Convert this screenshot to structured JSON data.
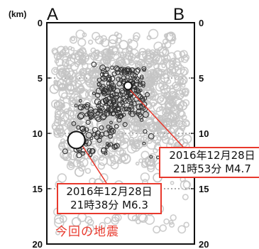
{
  "chart_data": {
    "type": "scatter",
    "title": "",
    "unit_label": "(km)",
    "endpoint_labels": [
      "A",
      "B"
    ],
    "ylim": [
      0,
      20
    ],
    "y_ticks": [
      "0",
      "5",
      "10",
      "15",
      "20"
    ],
    "dashed_gridlines_at": [
      5,
      10,
      15
    ],
    "colors": {
      "background_events": "#c4c4c4",
      "recent_events": "#333333",
      "annotation": "#e8382c"
    },
    "series": [
      {
        "note": "gray open circles (background seismicity), depth 1-19 km",
        "x_fraction": [
          0.05,
          0.08,
          0.1,
          0.12,
          0.15,
          0.18,
          0.22,
          0.25,
          0.28,
          0.3,
          0.35,
          0.4,
          0.45,
          0.5,
          0.55,
          0.6,
          0.65,
          0.7,
          0.72,
          0.75,
          0.78,
          0.8,
          0.85,
          0.9,
          0.95,
          0.18,
          0.22,
          0.3,
          0.38,
          0.62,
          0.7,
          0.82,
          0.88,
          0.2,
          0.35,
          0.52,
          0.75,
          0.92,
          0.45,
          0.58
        ],
        "depth_km": [
          6.0,
          7.5,
          5.5,
          8.5,
          4.5,
          9.5,
          3.0,
          6.5,
          5.0,
          11.5,
          4.0,
          6.0,
          2.5,
          3.5,
          5.5,
          8.0,
          3.0,
          6.5,
          9.5,
          4.5,
          7.0,
          5.0,
          8.5,
          6.5,
          10.5,
          12.0,
          13.5,
          16.0,
          12.5,
          11.0,
          12.5,
          9.0,
          11.5,
          18.0,
          14.5,
          2.0,
          14.0,
          7.5,
          1.5,
          17.5
        ]
      },
      {
        "note": "dark open circles (events after the main shock), depth 4-12 km",
        "x_fraction": [
          0.38,
          0.42,
          0.45,
          0.48,
          0.5,
          0.52,
          0.55,
          0.58,
          0.6,
          0.62,
          0.4,
          0.44,
          0.47,
          0.51,
          0.54,
          0.57,
          0.35,
          0.3,
          0.28,
          0.33,
          0.37,
          0.25,
          0.2,
          0.18,
          0.22,
          0.65,
          0.68,
          0.45,
          0.49,
          0.53
        ],
        "depth_km": [
          5.0,
          5.5,
          6.0,
          4.5,
          6.5,
          5.0,
          6.0,
          5.5,
          4.8,
          6.2,
          7.0,
          7.5,
          6.8,
          7.2,
          7.8,
          6.5,
          7.5,
          8.5,
          9.0,
          8.0,
          9.5,
          9.8,
          10.5,
          11.0,
          11.5,
          7.0,
          6.5,
          8.2,
          8.8,
          9.2
        ]
      }
    ],
    "highlighted_events": [
      {
        "x_fraction": 0.2,
        "depth_km": 10.6,
        "magnitude": "M6.3"
      },
      {
        "x_fraction": 0.55,
        "depth_km": 5.7,
        "magnitude": "M4.7"
      }
    ]
  },
  "annotations": {
    "event_b_line1": "2016年12月28日",
    "event_b_line2": "21時53分 M4.7",
    "event_a_line1": "2016年12月28日",
    "event_a_line2": "21時38分 M6.3"
  },
  "caption": "今回の地震"
}
